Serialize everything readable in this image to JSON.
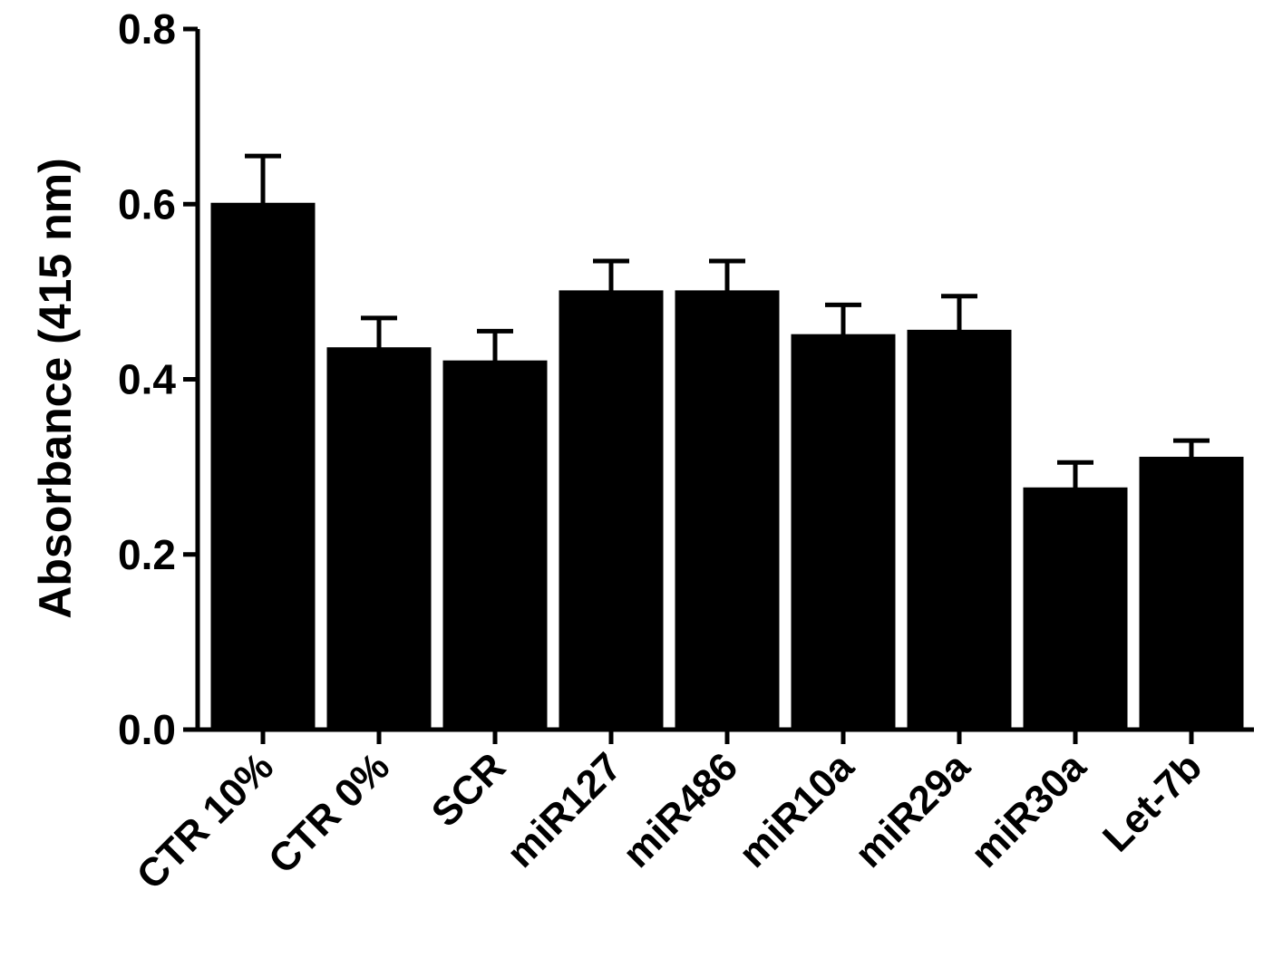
{
  "chart_data": {
    "type": "bar",
    "title": "",
    "xlabel": "",
    "ylabel": "Absorbance (415 nm)",
    "ylim": [
      0,
      0.8
    ],
    "yticks": [
      0.0,
      0.2,
      0.4,
      0.6,
      0.8
    ],
    "ytick_labels": [
      "0.0",
      "0.2",
      "0.4",
      "0.6",
      "0.8"
    ],
    "categories": [
      "CTR 10%",
      "CTR 0%",
      "SCR",
      "miR127",
      "miR486",
      "miR10a",
      "miR29a",
      "miR30a",
      "Let-7b"
    ],
    "values": [
      0.6,
      0.435,
      0.42,
      0.5,
      0.5,
      0.45,
      0.455,
      0.275,
      0.31
    ],
    "errors": [
      0.055,
      0.035,
      0.035,
      0.035,
      0.035,
      0.035,
      0.04,
      0.03,
      0.02
    ],
    "bar_color": "#000000",
    "grid": false,
    "legend": "none"
  }
}
